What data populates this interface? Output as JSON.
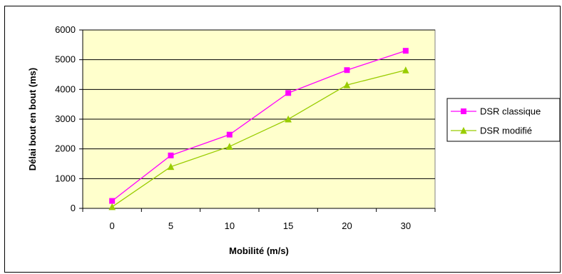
{
  "chart_data": {
    "type": "line",
    "categories": [
      "0",
      "5",
      "10",
      "15",
      "20",
      "30"
    ],
    "series": [
      {
        "name": "DSR classique",
        "values": [
          250,
          1780,
          2480,
          3880,
          4650,
          5300
        ],
        "color": "#ff00ff",
        "marker": "square"
      },
      {
        "name": "DSR modifié",
        "values": [
          50,
          1400,
          2080,
          3000,
          4150,
          4650
        ],
        "color": "#99cc00",
        "marker": "triangle"
      }
    ],
    "title": "",
    "xlabel": "Mobilité (m/s)",
    "ylabel": "Délai bout en bout (ms)",
    "ylim": [
      0,
      6000
    ],
    "yticks": [
      "0",
      "1000",
      "2000",
      "3000",
      "4000",
      "5000",
      "6000"
    ],
    "grid": true,
    "legend_position": "right",
    "plot_background": "#ffffcc"
  }
}
